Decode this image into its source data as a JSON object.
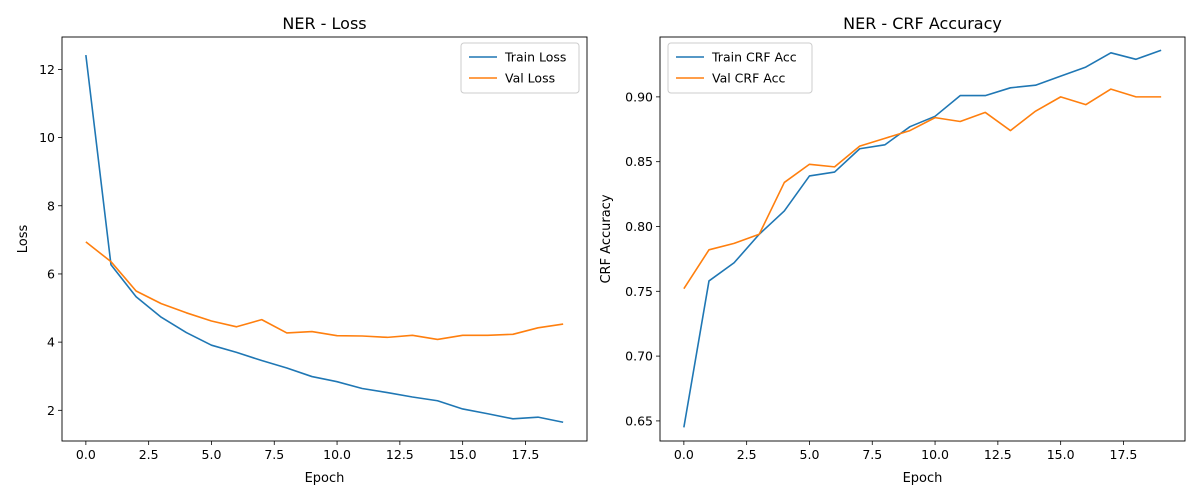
{
  "chart_data": [
    {
      "type": "line",
      "title": "NER - Loss",
      "xlabel": "Epoch",
      "ylabel": "Loss",
      "xlim": [
        -0.95,
        19.95
      ],
      "ylim": [
        1.1,
        12.95
      ],
      "xticks": [
        0,
        2.5,
        5,
        7.5,
        10,
        12.5,
        15,
        17.5
      ],
      "xtick_labels": [
        "0.0",
        "2.5",
        "5.0",
        "7.5",
        "10.0",
        "12.5",
        "15.0",
        "17.5"
      ],
      "yticks": [
        2,
        4,
        6,
        8,
        10,
        12
      ],
      "ytick_labels": [
        "2",
        "4",
        "6",
        "8",
        "10",
        "12"
      ],
      "grid": false,
      "legend_position": "top-right",
      "x": [
        0,
        1,
        2,
        3,
        4,
        5,
        6,
        7,
        8,
        9,
        10,
        11,
        12,
        13,
        14,
        15,
        16,
        17,
        18,
        19
      ],
      "series": [
        {
          "name": "Train Loss",
          "color": "#1f77b4",
          "values": [
            12.42,
            6.27,
            5.33,
            4.73,
            4.28,
            3.91,
            3.7,
            3.46,
            3.24,
            2.99,
            2.84,
            2.64,
            2.52,
            2.39,
            2.28,
            2.04,
            1.9,
            1.75,
            1.8,
            1.65
          ]
        },
        {
          "name": "Val Loss",
          "color": "#ff7f0e",
          "values": [
            6.94,
            6.36,
            5.5,
            5.13,
            4.86,
            4.62,
            4.45,
            4.66,
            4.27,
            4.31,
            4.19,
            4.18,
            4.14,
            4.2,
            4.08,
            4.2,
            4.2,
            4.23,
            4.42,
            4.53
          ]
        }
      ]
    },
    {
      "type": "line",
      "title": "NER - CRF Accuracy",
      "xlabel": "Epoch",
      "ylabel": "CRF Accuracy",
      "xlim": [
        -0.95,
        19.95
      ],
      "ylim": [
        0.6345,
        0.9462
      ],
      "xticks": [
        0,
        2.5,
        5,
        7.5,
        10,
        12.5,
        15,
        17.5
      ],
      "xtick_labels": [
        "0.0",
        "2.5",
        "5.0",
        "7.5",
        "10.0",
        "12.5",
        "15.0",
        "17.5"
      ],
      "yticks": [
        0.65,
        0.7,
        0.75,
        0.8,
        0.85,
        0.9
      ],
      "ytick_labels": [
        "0.65",
        "0.70",
        "0.75",
        "0.80",
        "0.85",
        "0.90"
      ],
      "grid": false,
      "legend_position": "top-left",
      "x": [
        0,
        1,
        2,
        3,
        4,
        5,
        6,
        7,
        8,
        9,
        10,
        11,
        12,
        13,
        14,
        15,
        16,
        17,
        18,
        19
      ],
      "series": [
        {
          "name": "Train CRF Acc",
          "color": "#1f77b4",
          "values": [
            0.645,
            0.758,
            0.772,
            0.794,
            0.812,
            0.839,
            0.842,
            0.86,
            0.863,
            0.877,
            0.885,
            0.901,
            0.901,
            0.907,
            0.909,
            0.916,
            0.923,
            0.934,
            0.929,
            0.936
          ]
        },
        {
          "name": "Val CRF Acc",
          "color": "#ff7f0e",
          "values": [
            0.752,
            0.782,
            0.787,
            0.794,
            0.834,
            0.848,
            0.846,
            0.862,
            0.868,
            0.874,
            0.884,
            0.881,
            0.888,
            0.874,
            0.889,
            0.9,
            0.894,
            0.906,
            0.9,
            0.9
          ]
        }
      ]
    }
  ]
}
